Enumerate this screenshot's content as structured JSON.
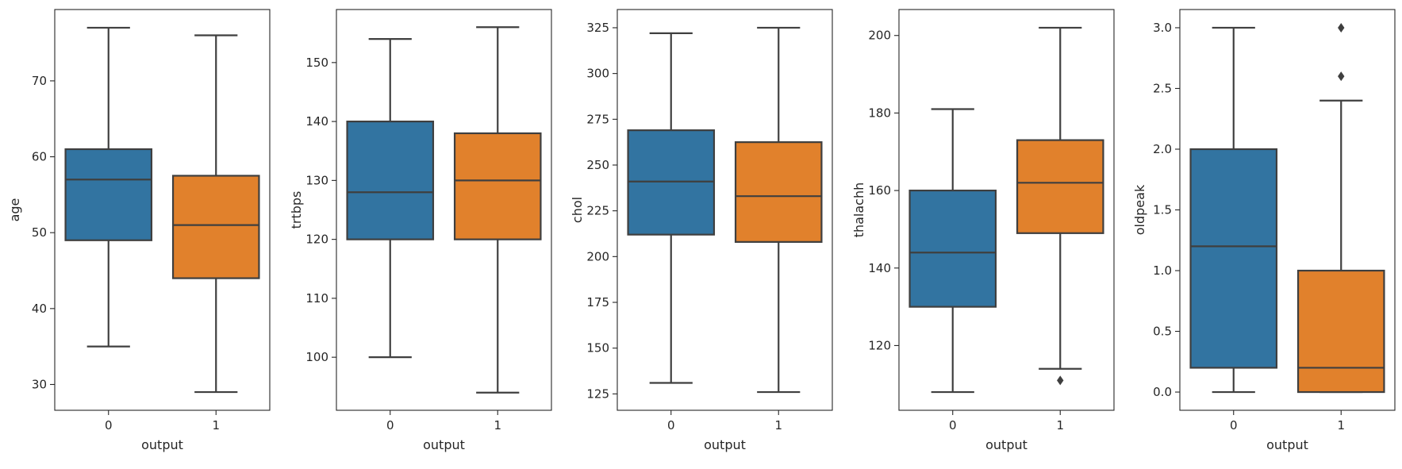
{
  "chart_data": [
    {
      "type": "box",
      "xlabel": "output",
      "ylabel": "age",
      "categories": [
        "0",
        "1"
      ],
      "ylim": [
        26.6,
        79.4
      ],
      "yticks": [
        30,
        40,
        50,
        60,
        70
      ],
      "boxes": [
        {
          "category": "0",
          "whisker_low": 35,
          "q1": 49,
          "median": 57,
          "q3": 61,
          "whisker_high": 77,
          "outliers": []
        },
        {
          "category": "1",
          "whisker_low": 29,
          "q1": 44,
          "median": 51,
          "q3": 57.5,
          "whisker_high": 76,
          "outliers": []
        }
      ]
    },
    {
      "type": "box",
      "xlabel": "output",
      "ylabel": "trtbps",
      "categories": [
        "0",
        "1"
      ],
      "ylim": [
        91.0,
        159.0
      ],
      "yticks": [
        100,
        110,
        120,
        130,
        140,
        150
      ],
      "boxes": [
        {
          "category": "0",
          "whisker_low": 100,
          "q1": 120,
          "median": 128,
          "q3": 140,
          "whisker_high": 154,
          "outliers": []
        },
        {
          "category": "1",
          "whisker_low": 94,
          "q1": 120,
          "median": 130,
          "q3": 138,
          "whisker_high": 156,
          "outliers": []
        }
      ]
    },
    {
      "type": "box",
      "xlabel": "output",
      "ylabel": "chol",
      "categories": [
        "0",
        "1"
      ],
      "ylim": [
        116.05,
        334.95
      ],
      "yticks": [
        125,
        150,
        175,
        200,
        225,
        250,
        275,
        300,
        325
      ],
      "boxes": [
        {
          "category": "0",
          "whisker_low": 131,
          "q1": 212,
          "median": 241,
          "q3": 269,
          "whisker_high": 322,
          "outliers": []
        },
        {
          "category": "1",
          "whisker_low": 126,
          "q1": 208,
          "median": 233,
          "q3": 262.5,
          "whisker_high": 325,
          "outliers": []
        }
      ]
    },
    {
      "type": "box",
      "xlabel": "output",
      "ylabel": "thalachh",
      "categories": [
        "0",
        "1"
      ],
      "ylim": [
        103.3,
        206.7
      ],
      "yticks": [
        120,
        140,
        160,
        180,
        200
      ],
      "boxes": [
        {
          "category": "0",
          "whisker_low": 108,
          "q1": 130,
          "median": 144,
          "q3": 160,
          "whisker_high": 181,
          "outliers": []
        },
        {
          "category": "1",
          "whisker_low": 114,
          "q1": 149,
          "median": 162,
          "q3": 173,
          "whisker_high": 202,
          "outliers": [
            111
          ]
        }
      ]
    },
    {
      "type": "box",
      "xlabel": "output",
      "ylabel": "oldpeak",
      "categories": [
        "0",
        "1"
      ],
      "ylim": [
        -0.15,
        3.15
      ],
      "yticks": [
        "0.0",
        "0.5",
        "1.0",
        "1.5",
        "2.0",
        "2.5",
        "3.0"
      ],
      "boxes": [
        {
          "category": "0",
          "whisker_low": 0,
          "q1": 0.2,
          "median": 1.2,
          "q3": 2.0,
          "whisker_high": 3.0,
          "outliers": []
        },
        {
          "category": "1",
          "whisker_low": 0,
          "q1": 0,
          "median": 0.2,
          "q3": 1.0,
          "whisker_high": 2.4,
          "outliers": [
            2.6,
            3.0
          ]
        }
      ]
    }
  ],
  "colors": {
    "category_0": "#3274a1",
    "category_1": "#e1812c",
    "line": "#3f3f3f",
    "axis": "#262626"
  }
}
